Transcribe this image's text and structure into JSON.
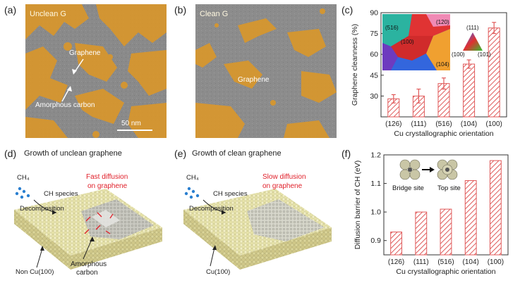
{
  "panels": {
    "a": {
      "letter": "(a)",
      "label": "Unclean G",
      "graphene": "Graphene",
      "amorphous": "Amorphous carbon",
      "scale": "50 nm"
    },
    "b": {
      "letter": "(b)",
      "label": "Clean G",
      "graphene": "Graphene"
    },
    "c": {
      "letter": "(c)"
    },
    "d": {
      "letter": "(d)",
      "title": "Growth of unclean graphene",
      "ch4": "CH₄",
      "ch_species": "CH species",
      "decomposition": "Decomposition",
      "fast": "Fast diffusion",
      "fast2": "on graphene",
      "substrate": "Non Cu(100)",
      "amorphous1": "Amorphous",
      "amorphous2": "carbon"
    },
    "e": {
      "letter": "(e)",
      "title": "Growth of clean graphene",
      "ch4": "CH₄",
      "ch_species": "CH species",
      "decomposition": "Decomposition",
      "slow": "Slow diffusion",
      "slow2": "on graphene",
      "substrate": "Cu(100)"
    },
    "f": {
      "letter": "(f)",
      "bridge": "Bridge site",
      "top": "Top site"
    }
  },
  "inset_c": {
    "labels": [
      "(516)",
      "(100)",
      "(120)",
      "(104)"
    ],
    "triangle": [
      "(111)",
      "(100)",
      "(101)"
    ]
  },
  "chart_data": [
    {
      "type": "bar",
      "panel": "c",
      "categories": [
        "(126)",
        "(111)",
        "(516)",
        "(104)",
        "(100)"
      ],
      "values": [
        28,
        30,
        39,
        53,
        79
      ],
      "errors": [
        3,
        5,
        4,
        3,
        4
      ],
      "xlabel": "Cu crystallographic orientation",
      "ylabel": "Graphene cleanness (%)",
      "ylim": [
        15,
        90
      ],
      "yticks": [
        30,
        45,
        60,
        75,
        90
      ],
      "bar_color": "#e05a5a"
    },
    {
      "type": "bar",
      "panel": "f",
      "categories": [
        "(126)",
        "(111)",
        "(516)",
        "(104)",
        "(100)"
      ],
      "values": [
        0.93,
        1.0,
        1.01,
        1.11,
        1.18
      ],
      "xlabel": "Cu crystallographic orientation",
      "ylabel": "Diffusion barrier of CH (eV)",
      "ylim": [
        0.85,
        1.2
      ],
      "yticks": [
        0.9,
        1.0,
        1.1,
        1.2
      ],
      "bar_color": "#e05a5a"
    }
  ]
}
